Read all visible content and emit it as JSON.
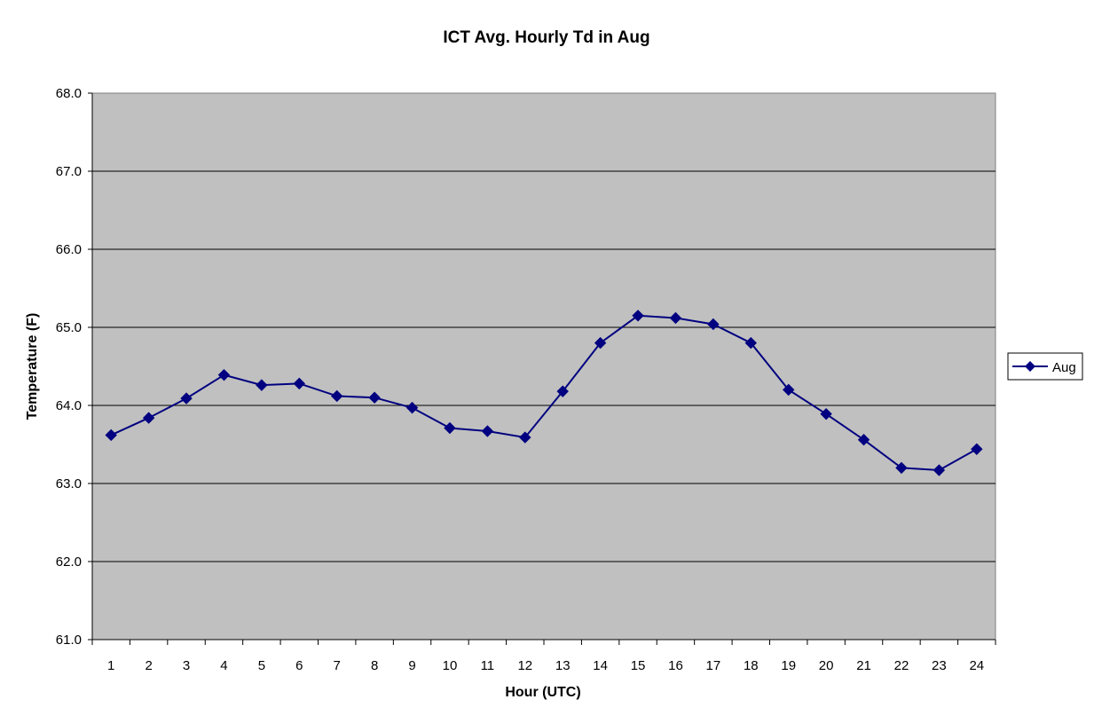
{
  "chart_data": {
    "type": "line",
    "title": "ICT Avg. Hourly Td in Aug",
    "xlabel": "Hour (UTC)",
    "ylabel": "Temperature (F)",
    "categories": [
      "1",
      "2",
      "3",
      "4",
      "5",
      "6",
      "7",
      "8",
      "9",
      "10",
      "11",
      "12",
      "13",
      "14",
      "15",
      "16",
      "17",
      "18",
      "19",
      "20",
      "21",
      "22",
      "23",
      "24"
    ],
    "ylim": [
      61.0,
      68.0
    ],
    "yticks": [
      "61.0",
      "62.0",
      "63.0",
      "64.0",
      "65.0",
      "66.0",
      "67.0",
      "68.0"
    ],
    "grid": true,
    "legend_position": "right",
    "plot_background": "#c0c0c0",
    "series": [
      {
        "name": "Aug",
        "color": "#000080",
        "marker": "diamond",
        "values": [
          63.62,
          63.84,
          64.09,
          64.39,
          64.26,
          64.28,
          64.12,
          64.1,
          63.97,
          63.71,
          63.67,
          63.59,
          64.18,
          64.8,
          65.15,
          65.12,
          65.04,
          64.8,
          64.2,
          63.89,
          63.56,
          63.2,
          63.17,
          63.44
        ]
      }
    ]
  }
}
